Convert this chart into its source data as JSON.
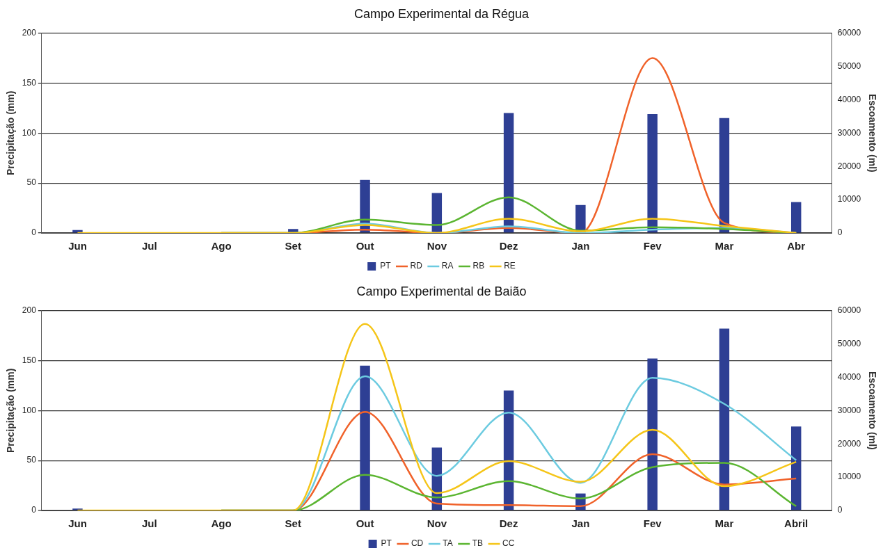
{
  "chart_data": [
    {
      "type": "bar",
      "title": "Campo Experimental da Régua",
      "ylabel": "Precipitação (mm)",
      "y2label": "Escoamento (ml)",
      "categories": [
        "Jun",
        "Jul",
        "Ago",
        "Set",
        "Out",
        "Nov",
        "Dez",
        "Jan",
        "Fev",
        "Mar",
        "Abr"
      ],
      "series": [
        {
          "name": "PT",
          "color": "#2e3f94",
          "values": [
            3,
            0,
            0,
            4,
            53,
            40,
            120,
            28,
            119,
            115,
            31
          ]
        },
        {
          "name": "RD",
          "type": "line",
          "axis": "y2",
          "color": "#f0622a",
          "values": [
            null,
            null,
            0,
            0,
            1000,
            0,
            1500,
            0,
            52500,
            3000,
            0
          ]
        },
        {
          "name": "RA",
          "type": "line",
          "axis": "y2",
          "color": "#6ccbe0",
          "values": [
            null,
            null,
            0,
            0,
            2800,
            0,
            2000,
            0,
            1000,
            1500,
            0
          ]
        },
        {
          "name": "RB",
          "type": "line",
          "axis": "y2",
          "color": "#5bb531",
          "values": [
            null,
            null,
            0,
            0,
            4000,
            2400,
            10700,
            700,
            1700,
            1200,
            0
          ]
        },
        {
          "name": "RE",
          "type": "line",
          "axis": "y2",
          "color": "#f5c518",
          "values": [
            0,
            0,
            0,
            0,
            2400,
            0,
            4300,
            500,
            4300,
            2100,
            0
          ]
        }
      ],
      "ylim": [
        0,
        200
      ],
      "yticks": [
        0,
        50,
        100,
        150,
        200
      ],
      "y2lim": [
        0,
        60000
      ],
      "y2ticks": [
        0,
        10000,
        20000,
        30000,
        40000,
        50000,
        60000
      ],
      "grid": "y",
      "legend": "bottom",
      "marker": "none"
    },
    {
      "type": "bar",
      "title": "Campo Experimental de Baião",
      "ylabel": "Precipitação (mm)",
      "y2label": "Escoamento (ml)",
      "categories": [
        "Jun",
        "Jul",
        "Ago",
        "Set",
        "Out",
        "Nov",
        "Dez",
        "Jan",
        "Fev",
        "Mar",
        "Abril"
      ],
      "series": [
        {
          "name": "PT",
          "color": "#2e3f94",
          "values": [
            2,
            0,
            0,
            0,
            145,
            63,
            120,
            17,
            152,
            182,
            84
          ]
        },
        {
          "name": "CD",
          "type": "line",
          "axis": "y2",
          "color": "#f0622a",
          "values": [
            null,
            null,
            0,
            0,
            29600,
            2100,
            1600,
            1300,
            16900,
            7800,
            9600
          ]
        },
        {
          "name": "TA",
          "type": "line",
          "axis": "y2",
          "color": "#6ccbe0",
          "values": [
            null,
            null,
            0,
            0,
            40300,
            10400,
            29400,
            8300,
            39800,
            32000,
            15100
          ]
        },
        {
          "name": "TB",
          "type": "line",
          "axis": "y2",
          "color": "#5bb531",
          "values": [
            null,
            null,
            0,
            0,
            10700,
            3900,
            8800,
            3600,
            13000,
            14300,
            1300
          ]
        },
        {
          "name": "CC",
          "type": "line",
          "axis": "y2",
          "color": "#f5c518",
          "values": [
            0,
            0,
            0,
            0,
            56000,
            5200,
            14800,
            8600,
            24200,
            7300,
            14600
          ]
        }
      ],
      "ylim": [
        0,
        200
      ],
      "yticks": [
        0,
        50,
        100,
        150,
        200
      ],
      "y2lim": [
        0,
        60000
      ],
      "y2ticks": [
        0,
        10000,
        20000,
        30000,
        40000,
        50000,
        60000
      ],
      "grid": "y",
      "legend": "bottom",
      "marker": "none"
    }
  ]
}
